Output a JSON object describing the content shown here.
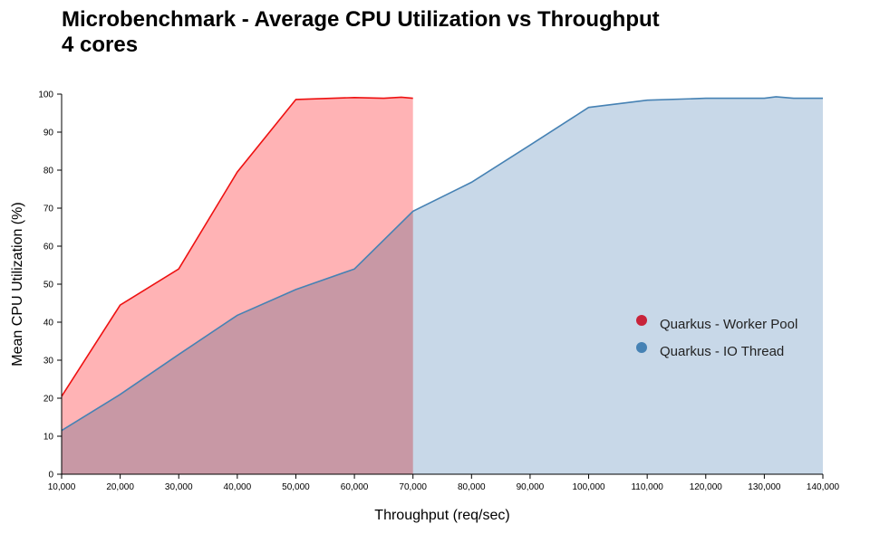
{
  "chart_data": {
    "type": "area",
    "title": "Microbenchmark - Average CPU Utilization vs Throughput",
    "subtitle": "4 cores",
    "xlabel": "Throughput (req/sec)",
    "ylabel": "Mean CPU Utilization (%)",
    "xlim": [
      10000,
      140000
    ],
    "ylim": [
      0,
      100
    ],
    "x_ticks": [
      "10,000",
      "20,000",
      "30,000",
      "40,000",
      "50,000",
      "60,000",
      "70,000",
      "80,000",
      "90,000",
      "100,000",
      "110,000",
      "120,000",
      "130,000",
      "140,000"
    ],
    "y_ticks": [
      "0",
      "10",
      "20",
      "30",
      "40",
      "50",
      "60",
      "70",
      "80",
      "90",
      "100"
    ],
    "legend_position": "right",
    "series": [
      {
        "name": "Quarkus - Worker Pool",
        "color": "#c8233a",
        "line_color": "#ee1111",
        "fill_color": "#ffb3b5",
        "x": [
          10000,
          20000,
          30000,
          40000,
          50000,
          60000,
          65000,
          68000,
          70000
        ],
        "y": [
          20.5,
          44.5,
          54,
          79.5,
          98.6,
          99.1,
          98.9,
          99.2,
          98.9
        ]
      },
      {
        "name": "Quarkus - IO Thread",
        "color": "#4682b4",
        "line_color": "#4682b4",
        "fill_color": "#c8d8e8",
        "x": [
          10000,
          20000,
          30000,
          40000,
          50000,
          60000,
          70000,
          80000,
          90000,
          100000,
          110000,
          120000,
          130000,
          132000,
          135000,
          140000
        ],
        "y": [
          11.5,
          21,
          31.5,
          41.8,
          48.6,
          54,
          69.2,
          76.8,
          86.6,
          96.5,
          98.4,
          98.9,
          98.9,
          99.3,
          98.9,
          98.9
        ]
      }
    ]
  }
}
